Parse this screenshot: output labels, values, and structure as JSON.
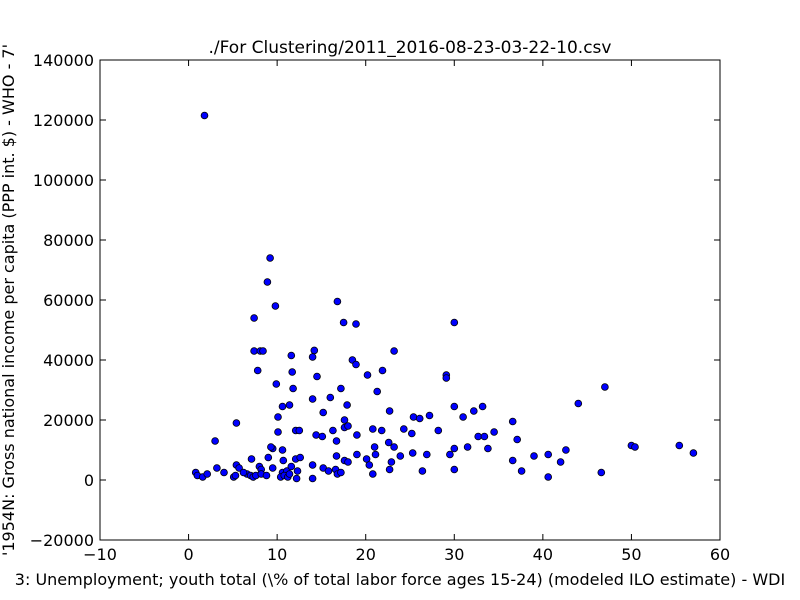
{
  "chart_data": {
    "type": "scatter",
    "title": "./For Clustering/2011_2016-08-23-03-22-10.csv",
    "xlabel": "3: Unemployment; youth total (\\% of total labor force ages 15-24)  (modeled ILO estimate) - WDI",
    "ylabel": "'1954N: Gross national income per capita (PPP int. $) - WHO - 7'",
    "xlim": [
      -10,
      60
    ],
    "ylim": [
      -20000,
      140000
    ],
    "x_ticks": [
      "−10",
      "0",
      "10",
      "20",
      "30",
      "40",
      "50",
      "60"
    ],
    "y_ticks": [
      "−20000",
      "0",
      "20000",
      "40000",
      "60000",
      "80000",
      "100000",
      "120000",
      "140000"
    ],
    "x_tick_values": [
      -10,
      0,
      10,
      20,
      30,
      40,
      50,
      60
    ],
    "y_tick_values": [
      -20000,
      0,
      20000,
      40000,
      60000,
      80000,
      100000,
      120000,
      140000
    ],
    "grid": false,
    "marker_color": "#0000ff",
    "points": [
      [
        1.8,
        121500
      ],
      [
        9.2,
        74000
      ],
      [
        8.9,
        66000
      ],
      [
        9.8,
        58000
      ],
      [
        16.8,
        59500
      ],
      [
        17.5,
        52500
      ],
      [
        18.9,
        52000
      ],
      [
        30.0,
        52500
      ],
      [
        7.4,
        54000
      ],
      [
        7.4,
        43000
      ],
      [
        8.1,
        43000
      ],
      [
        8.4,
        43000
      ],
      [
        14.2,
        43200
      ],
      [
        23.2,
        43000
      ],
      [
        11.6,
        41500
      ],
      [
        14.0,
        41000
      ],
      [
        18.5,
        40000
      ],
      [
        18.9,
        38500
      ],
      [
        7.8,
        36500
      ],
      [
        11.7,
        36000
      ],
      [
        14.5,
        34500
      ],
      [
        21.9,
        36500
      ],
      [
        29.1,
        35000
      ],
      [
        29.1,
        34000
      ],
      [
        20.2,
        35000
      ],
      [
        47.0,
        31000
      ],
      [
        9.9,
        32000
      ],
      [
        11.8,
        30500
      ],
      [
        17.2,
        30500
      ],
      [
        21.3,
        29500
      ],
      [
        14.0,
        27000
      ],
      [
        16.0,
        27500
      ],
      [
        11.4,
        25000
      ],
      [
        10.6,
        24500
      ],
      [
        17.9,
        25000
      ],
      [
        30.0,
        24500
      ],
      [
        33.2,
        24500
      ],
      [
        44.0,
        25500
      ],
      [
        10.1,
        21000
      ],
      [
        15.2,
        22500
      ],
      [
        22.7,
        23000
      ],
      [
        25.4,
        21000
      ],
      [
        26.1,
        20500
      ],
      [
        27.2,
        21500
      ],
      [
        31.0,
        21000
      ],
      [
        32.2,
        23000
      ],
      [
        36.6,
        19500
      ],
      [
        5.4,
        19000
      ],
      [
        17.6,
        20000
      ],
      [
        17.6,
        17500
      ],
      [
        18.0,
        18000
      ],
      [
        10.1,
        16000
      ],
      [
        12.1,
        16500
      ],
      [
        12.5,
        16500
      ],
      [
        16.3,
        16500
      ],
      [
        20.8,
        17000
      ],
      [
        21.8,
        16500
      ],
      [
        24.3,
        17000
      ],
      [
        28.2,
        16500
      ],
      [
        34.5,
        16000
      ],
      [
        3.0,
        13000
      ],
      [
        14.4,
        15000
      ],
      [
        15.1,
        14500
      ],
      [
        19.0,
        15000
      ],
      [
        25.2,
        15500
      ],
      [
        32.7,
        14500
      ],
      [
        33.4,
        14500
      ],
      [
        37.1,
        13500
      ],
      [
        9.5,
        10500
      ],
      [
        9.3,
        11000
      ],
      [
        10.6,
        10000
      ],
      [
        16.7,
        13000
      ],
      [
        21.0,
        11000
      ],
      [
        22.6,
        12500
      ],
      [
        23.2,
        11000
      ],
      [
        30.0,
        10500
      ],
      [
        31.5,
        11000
      ],
      [
        33.8,
        10500
      ],
      [
        42.6,
        10000
      ],
      [
        50.0,
        11500
      ],
      [
        50.4,
        11000
      ],
      [
        55.4,
        11500
      ],
      [
        57.0,
        9000
      ],
      [
        7.1,
        7000
      ],
      [
        9.0,
        7500
      ],
      [
        10.7,
        6500
      ],
      [
        12.1,
        7000
      ],
      [
        12.6,
        7500
      ],
      [
        16.7,
        8000
      ],
      [
        17.6,
        6500
      ],
      [
        18.0,
        6000
      ],
      [
        19.0,
        8500
      ],
      [
        20.1,
        7000
      ],
      [
        21.1,
        8500
      ],
      [
        22.9,
        6000
      ],
      [
        23.9,
        8000
      ],
      [
        25.3,
        9000
      ],
      [
        26.9,
        8500
      ],
      [
        29.5,
        8500
      ],
      [
        36.6,
        6500
      ],
      [
        39.0,
        8000
      ],
      [
        40.6,
        8500
      ],
      [
        42.0,
        6000
      ],
      [
        46.6,
        2500
      ],
      [
        4.0,
        2500
      ],
      [
        5.4,
        5000
      ],
      [
        5.7,
        4000
      ],
      [
        6.6,
        2000
      ],
      [
        7.0,
        1500
      ],
      [
        8.0,
        4500
      ],
      [
        8.2,
        3500
      ],
      [
        9.5,
        4000
      ],
      [
        10.6,
        2500
      ],
      [
        11.1,
        3000
      ],
      [
        11.6,
        4500
      ],
      [
        12.3,
        3000
      ],
      [
        14.0,
        5000
      ],
      [
        15.2,
        4000
      ],
      [
        15.8,
        3000
      ],
      [
        16.6,
        3500
      ],
      [
        16.8,
        2000
      ],
      [
        17.2,
        2500
      ],
      [
        20.4,
        5000
      ],
      [
        20.8,
        2000
      ],
      [
        22.7,
        3500
      ],
      [
        26.4,
        3000
      ],
      [
        30.0,
        3500
      ],
      [
        37.6,
        3000
      ],
      [
        40.6,
        1000
      ],
      [
        0.8,
        2500
      ],
      [
        1.0,
        1500
      ],
      [
        1.6,
        1000
      ],
      [
        2.1,
        2000
      ],
      [
        3.2,
        4000
      ],
      [
        5.1,
        1000
      ],
      [
        5.3,
        1500
      ],
      [
        6.2,
        2500
      ],
      [
        7.3,
        1000
      ],
      [
        7.6,
        1500
      ],
      [
        8.2,
        2000
      ],
      [
        8.8,
        1500
      ],
      [
        10.4,
        1000
      ],
      [
        10.8,
        1500
      ],
      [
        11.2,
        1000
      ],
      [
        11.4,
        2000
      ],
      [
        12.2,
        500
      ],
      [
        14.0,
        500
      ]
    ]
  }
}
